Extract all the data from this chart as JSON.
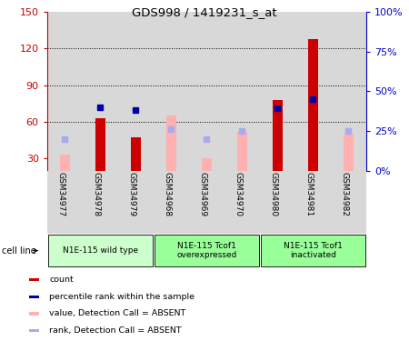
{
  "title": "GDS998 / 1419231_s_at",
  "samples": [
    "GSM34977",
    "GSM34978",
    "GSM34979",
    "GSM34968",
    "GSM34969",
    "GSM34970",
    "GSM34980",
    "GSM34981",
    "GSM34982"
  ],
  "red_bars": [
    null,
    63,
    47,
    null,
    null,
    null,
    78,
    128,
    null
  ],
  "blue_markers_pct": [
    null,
    40,
    38,
    null,
    null,
    null,
    39,
    45,
    null
  ],
  "pink_bars": [
    33,
    null,
    null,
    65,
    30,
    52,
    null,
    null,
    50
  ],
  "lavender_markers_pct": [
    20,
    null,
    null,
    26,
    20,
    25,
    null,
    null,
    25
  ],
  "ylim_left": [
    20,
    150
  ],
  "ylim_right": [
    0,
    100
  ],
  "yticks_left": [
    30,
    60,
    90,
    120,
    150
  ],
  "yticks_right": [
    0,
    25,
    50,
    75,
    100
  ],
  "ylabel_left_color": "#cc0000",
  "ylabel_right_color": "#0000cc",
  "bar_width": 0.28,
  "red_bar_color": "#cc0000",
  "blue_marker_color": "#0000aa",
  "pink_bar_color": "#ffb0b0",
  "lavender_marker_color": "#aaaaee",
  "bg_sample": "#d8d8d8",
  "group_info": [
    {
      "start": 0,
      "end": 2,
      "color": "#ccffcc",
      "label": "N1E-115 wild type"
    },
    {
      "start": 3,
      "end": 5,
      "color": "#99ff99",
      "label": "N1E-115 Tcof1\noverexpressed"
    },
    {
      "start": 6,
      "end": 8,
      "color": "#99ff99",
      "label": "N1E-115 Tcof1\ninactivated"
    }
  ],
  "legend_items": [
    {
      "color": "#cc0000",
      "label": "count"
    },
    {
      "color": "#0000aa",
      "label": "percentile rank within the sample"
    },
    {
      "color": "#ffb0b0",
      "label": "value, Detection Call = ABSENT"
    },
    {
      "color": "#aaaaee",
      "label": "rank, Detection Call = ABSENT"
    }
  ]
}
